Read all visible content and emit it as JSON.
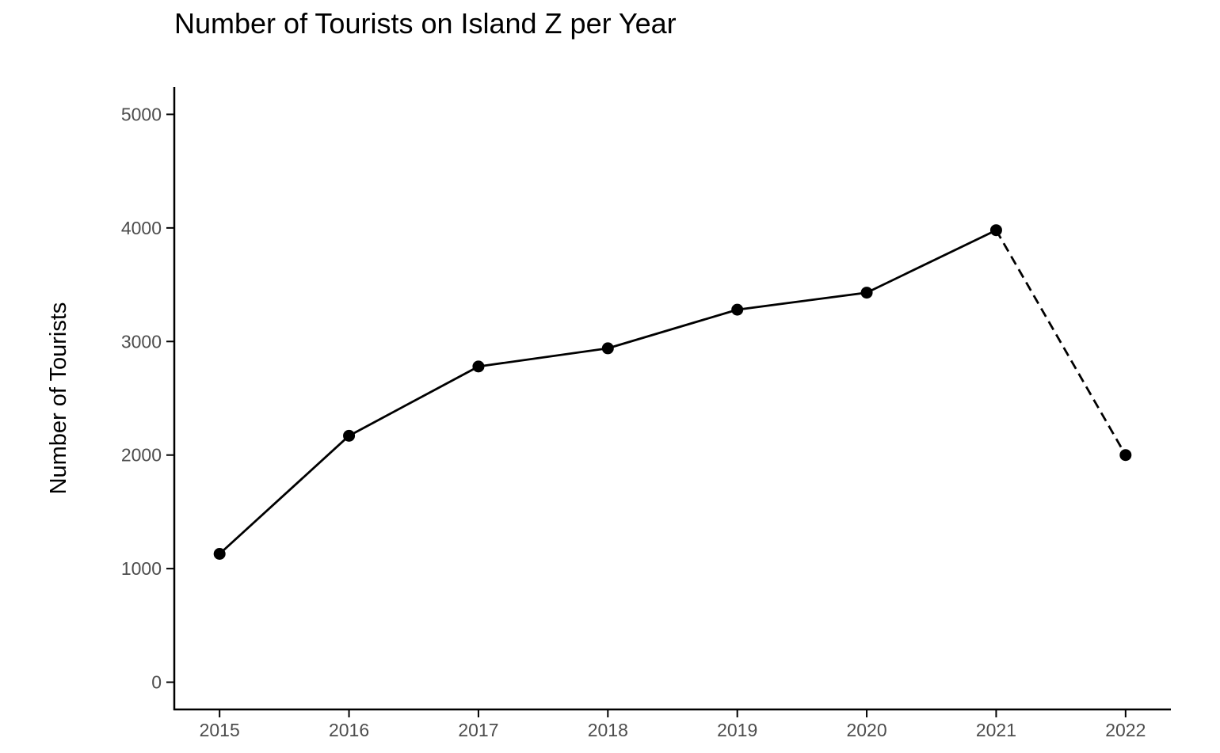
{
  "chart_data": {
    "type": "line",
    "title": "Number of Tourists on Island Z per Year",
    "xlabel": "",
    "ylabel": "Number of Tourists",
    "x": [
      2015,
      2016,
      2017,
      2018,
      2019,
      2020,
      2021,
      2022
    ],
    "series": [
      {
        "values": [
          1130,
          2170,
          2780,
          2940,
          3280,
          3430,
          3980,
          2000
        ],
        "segments": [
          {
            "from_x": 2015,
            "to_x": 2021,
            "style": "solid"
          },
          {
            "from_x": 2021,
            "to_x": 2022,
            "style": "dashed"
          }
        ]
      }
    ],
    "yticks": [
      0,
      1000,
      2000,
      3000,
      4000,
      5000
    ],
    "xticks": [
      2015,
      2016,
      2017,
      2018,
      2019,
      2020,
      2021,
      2022
    ],
    "ylim": [
      -240,
      5240
    ],
    "xlim": [
      2014.65,
      2022.35
    ],
    "grid": false,
    "legend": "none",
    "colors": {
      "line": "#000000",
      "point": "#000000",
      "axis": "#000000",
      "tick_text": "#4d4d4d"
    }
  }
}
